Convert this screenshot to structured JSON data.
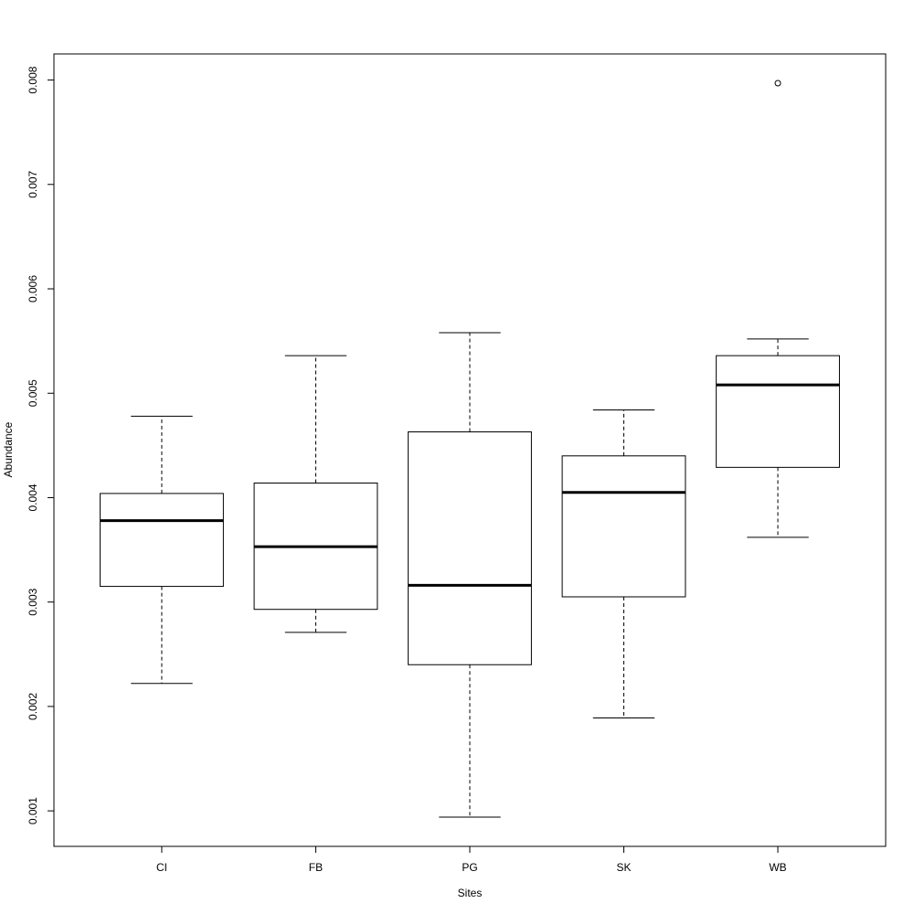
{
  "chart_data": {
    "type": "box",
    "x_label": "Sites",
    "y_label": "Abundance",
    "categories": [
      "CI",
      "FB",
      "PG",
      "SK",
      "WB"
    ],
    "whisker_low": [
      0.00222,
      0.00271,
      0.00094,
      0.00189,
      0.00362
    ],
    "q1": [
      0.00315,
      0.00293,
      0.0024,
      0.00305,
      0.00429
    ],
    "median": [
      0.00378,
      0.00353,
      0.00316,
      0.00405,
      0.00508
    ],
    "q3": [
      0.00404,
      0.00414,
      0.00463,
      0.0044,
      0.00536
    ],
    "whisker_high": [
      0.00478,
      0.00536,
      0.00558,
      0.00484,
      0.00552
    ],
    "outliers": [
      [],
      [],
      [],
      [],
      [
        0.00797
      ]
    ],
    "color": "#000000",
    "ylim": [
      0.00066,
      0.00825
    ],
    "yticks": [
      0.001,
      0.002,
      0.003,
      0.004,
      0.005,
      0.006,
      0.007,
      0.008
    ]
  }
}
